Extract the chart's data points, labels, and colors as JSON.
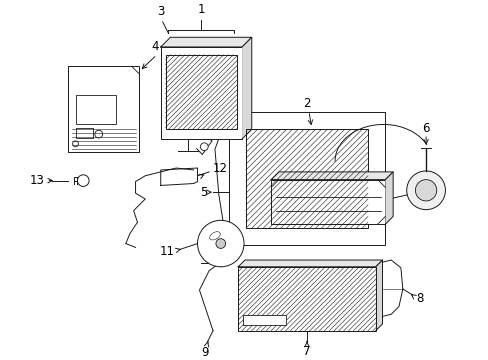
{
  "bg_color": "#ffffff",
  "line_color": "#1a1a1a",
  "label_color": "#000000",
  "label_fontsize": 8.5,
  "fig_width": 4.89,
  "fig_height": 3.6,
  "dpi": 100
}
